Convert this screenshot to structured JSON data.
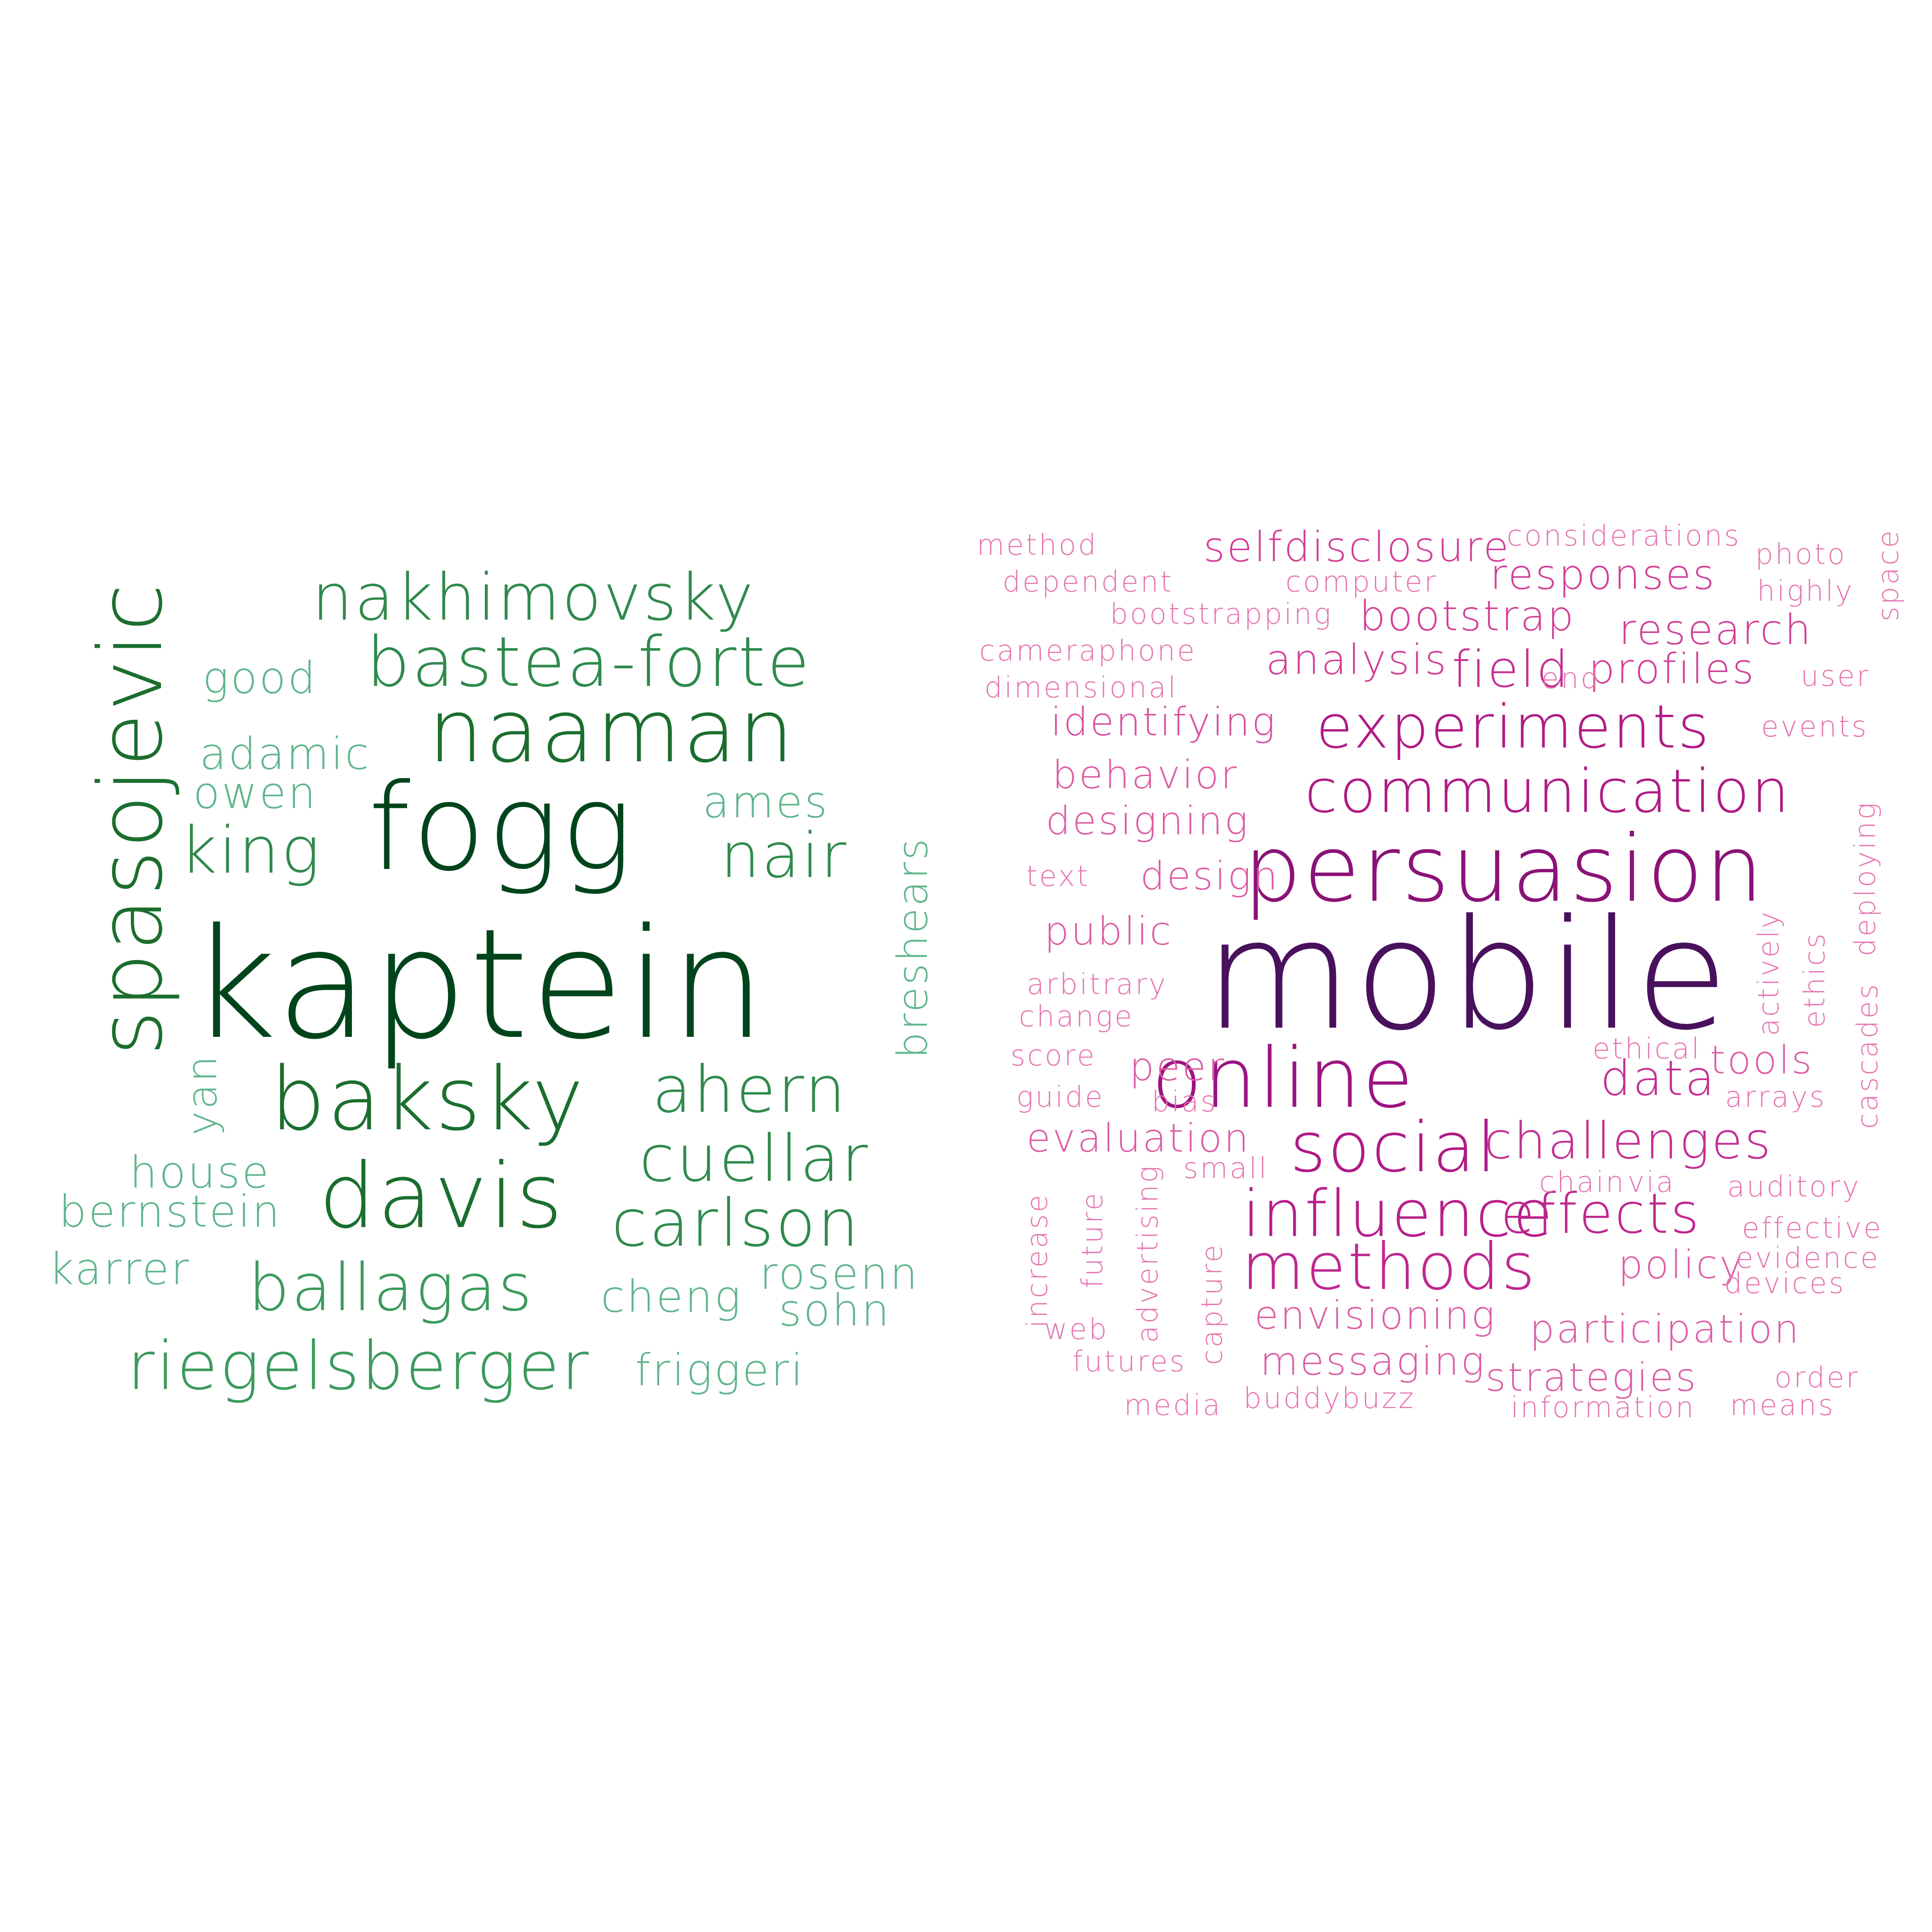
{
  "author_cloud": [
    {
      "text": "kaptein",
      "weight": 1.0,
      "color": "#00441b"
    },
    {
      "text": "fogg",
      "weight": 0.77,
      "color": "#00441b"
    },
    {
      "text": "spasojevic",
      "weight": 0.55,
      "color": "#1b6e2e"
    },
    {
      "text": "baksky",
      "weight": 0.58,
      "color": "#1b6e2e"
    },
    {
      "text": "naaman",
      "weight": 0.55,
      "color": "#1b6e2e"
    },
    {
      "text": "davis",
      "weight": 0.56,
      "color": "#1b6e2e"
    },
    {
      "text": "nakhimovsky",
      "weight": 0.42,
      "color": "#2f8a4c"
    },
    {
      "text": "bastea-forte",
      "weight": 0.44,
      "color": "#2f8a4c"
    },
    {
      "text": "king",
      "weight": 0.41,
      "color": "#2f8a4c"
    },
    {
      "text": "nair",
      "weight": 0.4,
      "color": "#2f8a4c"
    },
    {
      "text": "ahern",
      "weight": 0.41,
      "color": "#2f8a4c"
    },
    {
      "text": "cuellar",
      "weight": 0.41,
      "color": "#2f8a4c"
    },
    {
      "text": "carlson",
      "weight": 0.42,
      "color": "#2f8a4c"
    },
    {
      "text": "ballagas",
      "weight": 0.42,
      "color": "#3b9a5c"
    },
    {
      "text": "riegelsberger",
      "weight": 0.43,
      "color": "#3b9a5c"
    },
    {
      "text": "good",
      "weight": 0.27,
      "color": "#5fb58c"
    },
    {
      "text": "adamic",
      "weight": 0.27,
      "color": "#5fb58c"
    },
    {
      "text": "owen",
      "weight": 0.27,
      "color": "#5fb58c"
    },
    {
      "text": "ames",
      "weight": 0.27,
      "color": "#5fb58c"
    },
    {
      "text": "breshears",
      "weight": 0.25,
      "color": "#5fb58c"
    },
    {
      "text": "yan",
      "weight": 0.25,
      "color": "#5fb58c"
    },
    {
      "text": "house",
      "weight": 0.27,
      "color": "#5fb58c"
    },
    {
      "text": "bernstein",
      "weight": 0.27,
      "color": "#5fb58c"
    },
    {
      "text": "karrer",
      "weight": 0.27,
      "color": "#5fb58c"
    },
    {
      "text": "rosenn",
      "weight": 0.27,
      "color": "#5fb58c"
    },
    {
      "text": "cheng",
      "weight": 0.27,
      "color": "#5fb58c"
    },
    {
      "text": "sohn",
      "weight": 0.27,
      "color": "#5fb58c"
    },
    {
      "text": "friggeri",
      "weight": 0.27,
      "color": "#5fb58c"
    }
  ],
  "topic_cloud": [
    {
      "text": "mobile",
      "weight": 1.0,
      "color": "#49105c"
    },
    {
      "text": "persuasion",
      "weight": 0.6,
      "color": "#8b1278"
    },
    {
      "text": "online",
      "weight": 0.55,
      "color": "#9b1482"
    },
    {
      "text": "communication",
      "weight": 0.42,
      "color": "#b01a85"
    },
    {
      "text": "experiments",
      "weight": 0.42,
      "color": "#b01a85"
    },
    {
      "text": "social",
      "weight": 0.42,
      "color": "#b01a85"
    },
    {
      "text": "influence",
      "weight": 0.41,
      "color": "#b81d8a"
    },
    {
      "text": "effects",
      "weight": 0.38,
      "color": "#c0268f"
    },
    {
      "text": "methods",
      "weight": 0.41,
      "color": "#c0268f"
    },
    {
      "text": "challenges",
      "weight": 0.35,
      "color": "#c43092"
    },
    {
      "text": "data",
      "weight": 0.32,
      "color": "#c43092"
    },
    {
      "text": "selfdisclosure",
      "weight": 0.28,
      "color": "#d43d96"
    },
    {
      "text": "responses",
      "weight": 0.28,
      "color": "#d43d96"
    },
    {
      "text": "bootstrap",
      "weight": 0.28,
      "color": "#d43d96"
    },
    {
      "text": "research",
      "weight": 0.28,
      "color": "#d43d96"
    },
    {
      "text": "field",
      "weight": 0.32,
      "color": "#c43092"
    },
    {
      "text": "analysis",
      "weight": 0.28,
      "color": "#d43d96"
    },
    {
      "text": "profiles",
      "weight": 0.28,
      "color": "#d43d96"
    },
    {
      "text": "identifying",
      "weight": 0.28,
      "color": "#d94f9e"
    },
    {
      "text": "behavior",
      "weight": 0.26,
      "color": "#dd5ca4"
    },
    {
      "text": "designing",
      "weight": 0.26,
      "color": "#dd5ca4"
    },
    {
      "text": "design",
      "weight": 0.26,
      "color": "#dd5ca4"
    },
    {
      "text": "public",
      "weight": 0.26,
      "color": "#dd5ca4"
    },
    {
      "text": "peer",
      "weight": 0.26,
      "color": "#dd5ca4"
    },
    {
      "text": "tools",
      "weight": 0.26,
      "color": "#dd5ca4"
    },
    {
      "text": "evaluation",
      "weight": 0.26,
      "color": "#dd5ca4"
    },
    {
      "text": "envisioning",
      "weight": 0.26,
      "color": "#dd5ca4"
    },
    {
      "text": "policy",
      "weight": 0.26,
      "color": "#dd5ca4"
    },
    {
      "text": "messaging",
      "weight": 0.26,
      "color": "#dd5ca4"
    },
    {
      "text": "participation",
      "weight": 0.26,
      "color": "#dd5ca4"
    },
    {
      "text": "strategies",
      "weight": 0.26,
      "color": "#dd5ca4"
    },
    {
      "text": "method",
      "weight": 0.19,
      "color": "#e673b0"
    },
    {
      "text": "considerations",
      "weight": 0.19,
      "color": "#e673b0"
    },
    {
      "text": "photo",
      "weight": 0.19,
      "color": "#e673b0"
    },
    {
      "text": "dependent",
      "weight": 0.19,
      "color": "#e673b0"
    },
    {
      "text": "computer",
      "weight": 0.19,
      "color": "#e673b0"
    },
    {
      "text": "highly",
      "weight": 0.19,
      "color": "#e673b0"
    },
    {
      "text": "space",
      "weight": 0.17,
      "color": "#e673b0"
    },
    {
      "text": "bootstrapping",
      "weight": 0.19,
      "color": "#e673b0"
    },
    {
      "text": "cameraphone",
      "weight": 0.19,
      "color": "#e673b0"
    },
    {
      "text": "end",
      "weight": 0.19,
      "color": "#e673b0"
    },
    {
      "text": "user",
      "weight": 0.19,
      "color": "#e673b0"
    },
    {
      "text": "dimensional",
      "weight": 0.19,
      "color": "#e673b0"
    },
    {
      "text": "events",
      "weight": 0.19,
      "color": "#e673b0"
    },
    {
      "text": "text",
      "weight": 0.19,
      "color": "#e673b0"
    },
    {
      "text": "deploying",
      "weight": 0.19,
      "color": "#e673b0"
    },
    {
      "text": "actively",
      "weight": 0.19,
      "color": "#e673b0"
    },
    {
      "text": "ethics",
      "weight": 0.19,
      "color": "#e673b0"
    },
    {
      "text": "arbitrary",
      "weight": 0.19,
      "color": "#e673b0"
    },
    {
      "text": "change",
      "weight": 0.19,
      "color": "#e673b0"
    },
    {
      "text": "cascades",
      "weight": 0.19,
      "color": "#e673b0"
    },
    {
      "text": "ethical",
      "weight": 0.19,
      "color": "#e673b0"
    },
    {
      "text": "score",
      "weight": 0.19,
      "color": "#e673b0"
    },
    {
      "text": "guide",
      "weight": 0.19,
      "color": "#e673b0"
    },
    {
      "text": "bias",
      "weight": 0.19,
      "color": "#e673b0"
    },
    {
      "text": "arrays",
      "weight": 0.19,
      "color": "#e673b0"
    },
    {
      "text": "small",
      "weight": 0.19,
      "color": "#e673b0"
    },
    {
      "text": "chain",
      "weight": 0.19,
      "color": "#e673b0"
    },
    {
      "text": "via",
      "weight": 0.19,
      "color": "#e673b0"
    },
    {
      "text": "auditory",
      "weight": 0.19,
      "color": "#e673b0"
    },
    {
      "text": "effective",
      "weight": 0.19,
      "color": "#e673b0"
    },
    {
      "text": "evidence",
      "weight": 0.19,
      "color": "#e673b0"
    },
    {
      "text": "devices",
      "weight": 0.19,
      "color": "#e673b0"
    },
    {
      "text": "increase",
      "weight": 0.19,
      "color": "#e673b0"
    },
    {
      "text": "future",
      "weight": 0.19,
      "color": "#e673b0"
    },
    {
      "text": "advertising",
      "weight": 0.19,
      "color": "#e673b0"
    },
    {
      "text": "capture",
      "weight": 0.19,
      "color": "#e673b0"
    },
    {
      "text": "web",
      "weight": 0.19,
      "color": "#e673b0"
    },
    {
      "text": "futures",
      "weight": 0.19,
      "color": "#e673b0"
    },
    {
      "text": "media",
      "weight": 0.19,
      "color": "#e673b0"
    },
    {
      "text": "buddybuzz",
      "weight": 0.19,
      "color": "#e673b0"
    },
    {
      "text": "information",
      "weight": 0.19,
      "color": "#e673b0"
    },
    {
      "text": "means",
      "weight": 0.19,
      "color": "#e673b0"
    },
    {
      "text": "order",
      "weight": 0.19,
      "color": "#e673b0"
    }
  ]
}
